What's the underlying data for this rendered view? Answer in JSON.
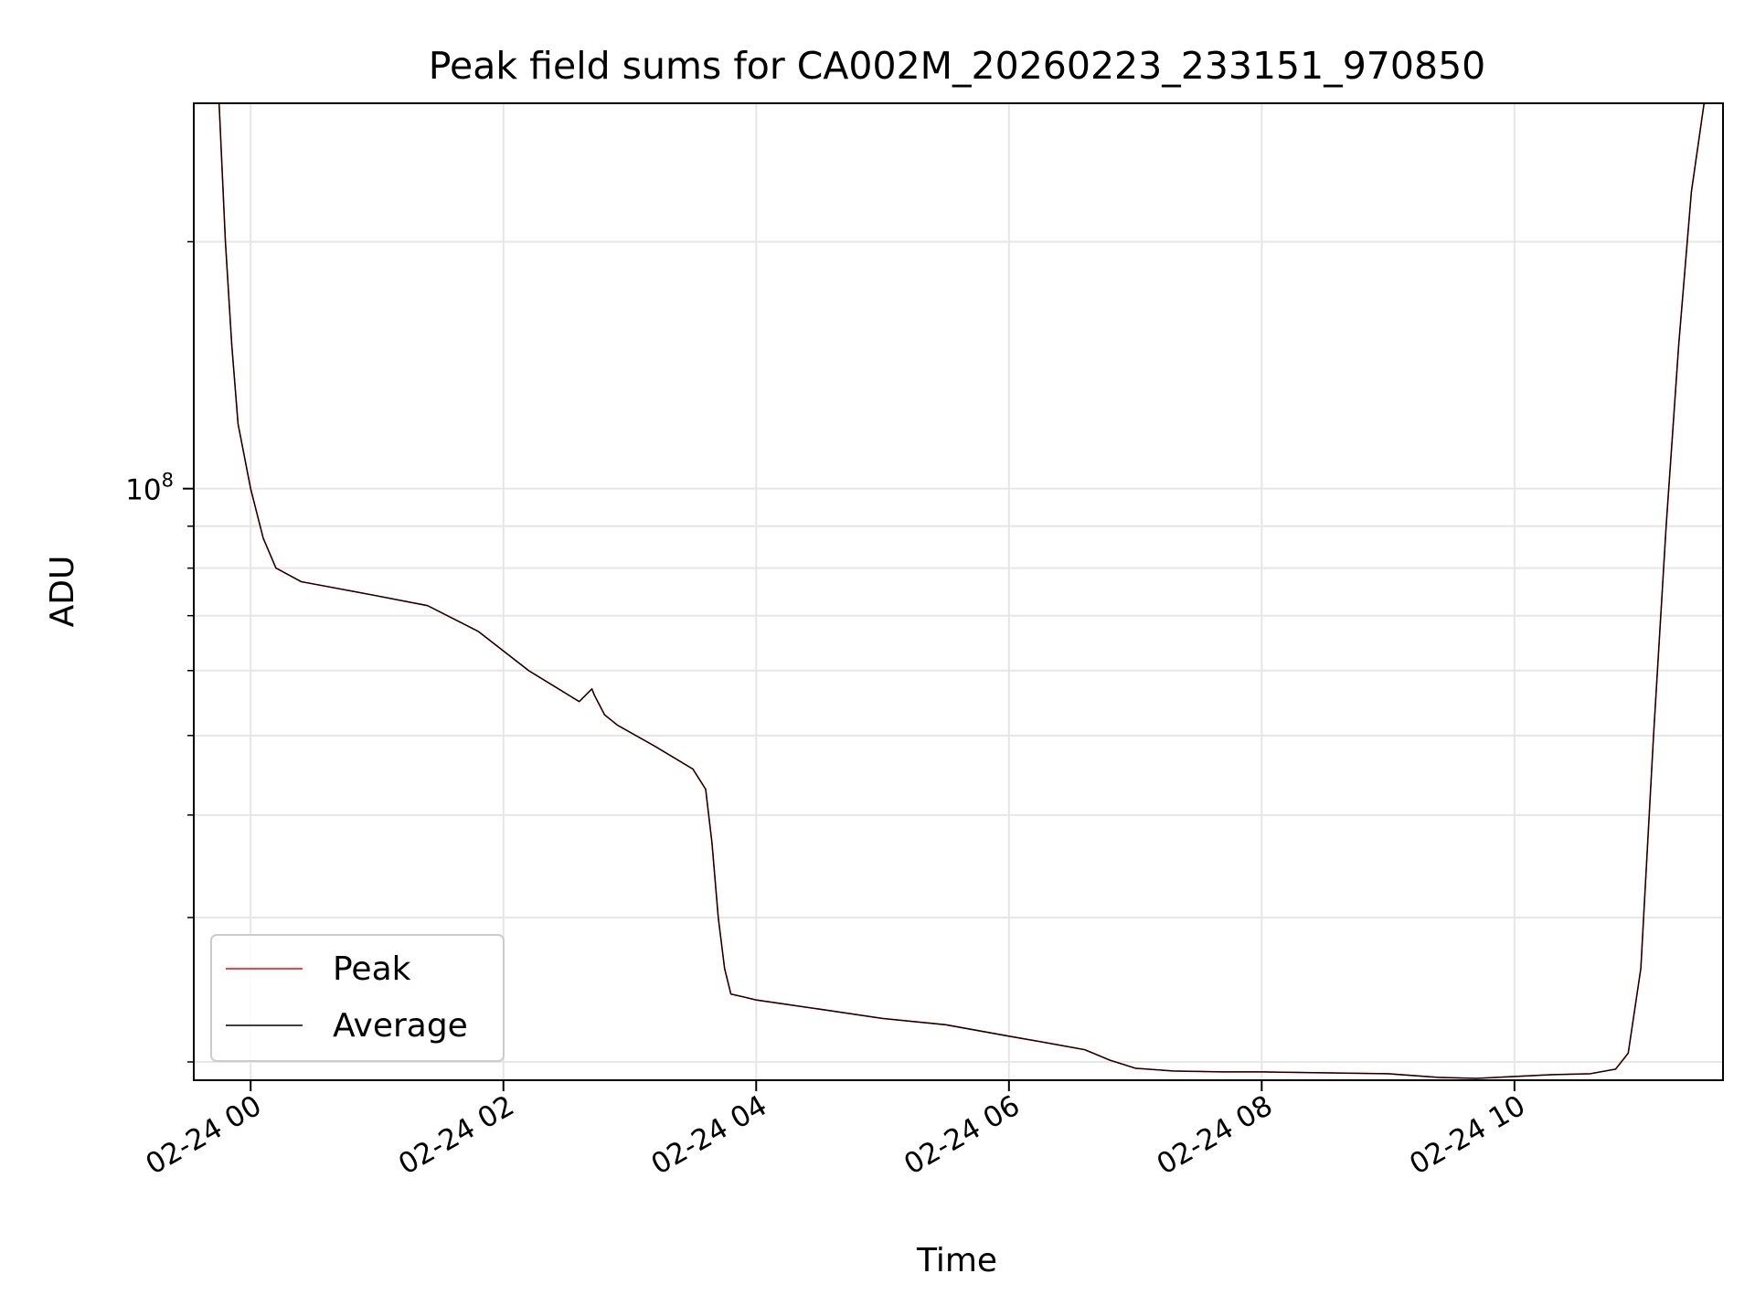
{
  "chart_data": {
    "type": "line",
    "title": "Peak field sums for CA002M_20260223_233151_970850",
    "xlabel": "Time",
    "ylabel": "ADU",
    "yscale": "log",
    "xlim": [
      -0.45,
      11.65
    ],
    "ylim": [
      19000000,
      295000000
    ],
    "grid": true,
    "legend": {
      "placement": "lower-left",
      "entries": [
        "Peak",
        "Average"
      ]
    },
    "x_ticks": [
      {
        "value": 0,
        "label": "02-24 00"
      },
      {
        "value": 2,
        "label": "02-24 02"
      },
      {
        "value": 4,
        "label": "02-24 04"
      },
      {
        "value": 6,
        "label": "02-24 06"
      },
      {
        "value": 8,
        "label": "02-24 08"
      },
      {
        "value": 10,
        "label": "02-24 10"
      }
    ],
    "y_major_ticks": [
      {
        "value": 100000000,
        "base": "10",
        "exp": "8"
      }
    ],
    "y_minor_ticks": [
      20000000,
      30000000,
      40000000,
      50000000,
      60000000,
      70000000,
      80000000,
      90000000,
      200000000
    ],
    "x_units": "hours since 02-24 00:00",
    "series": [
      {
        "name": "Peak",
        "color": "#ff0000",
        "x": [
          -0.3,
          -0.25,
          -0.2,
          -0.15,
          -0.1,
          0,
          0.1,
          0.2,
          0.4,
          0.6,
          1.0,
          1.4,
          1.8,
          2.2,
          2.6,
          2.7,
          2.72,
          2.8,
          2.9,
          3.2,
          3.5,
          3.6,
          3.65,
          3.7,
          3.75,
          3.8,
          3.9,
          4.0,
          4.5,
          5.0,
          5.5,
          6.0,
          6.3,
          6.6,
          6.8,
          7.0,
          7.3,
          7.7,
          8.0,
          8.5,
          9.0,
          9.4,
          9.7,
          10.0,
          10.3,
          10.6,
          10.8,
          10.9,
          11.0,
          11.1,
          11.2,
          11.3,
          11.4,
          11.5,
          11.65
        ],
        "values": [
          295000000,
          295000000,
          200000000,
          150000000,
          120000000,
          100000000,
          87000000,
          80000000,
          77000000,
          76000000,
          74000000,
          72000000,
          67000000,
          60000000,
          55000000,
          57000000,
          56000000,
          53000000,
          51500000,
          48500000,
          45500000,
          43000000,
          37000000,
          30000000,
          26000000,
          24200000,
          24000000,
          23800000,
          23200000,
          22600000,
          22200000,
          21500000,
          21100000,
          20700000,
          20100000,
          19650000,
          19500000,
          19450000,
          19450000,
          19400000,
          19350000,
          19150000,
          19100000,
          19200000,
          19300000,
          19350000,
          19600000,
          20500000,
          26000000,
          50000000,
          90000000,
          150000000,
          230000000,
          295000000,
          295000000
        ]
      },
      {
        "name": "Average",
        "color": "#000000",
        "x": [
          -0.3,
          -0.25,
          -0.2,
          -0.15,
          -0.1,
          0,
          0.1,
          0.2,
          0.4,
          0.6,
          1.0,
          1.4,
          1.8,
          2.2,
          2.6,
          2.7,
          2.72,
          2.8,
          2.9,
          3.2,
          3.5,
          3.6,
          3.65,
          3.7,
          3.75,
          3.8,
          3.9,
          4.0,
          4.5,
          5.0,
          5.5,
          6.0,
          6.3,
          6.6,
          6.8,
          7.0,
          7.3,
          7.7,
          8.0,
          8.5,
          9.0,
          9.4,
          9.7,
          10.0,
          10.3,
          10.6,
          10.8,
          10.9,
          11.0,
          11.1,
          11.2,
          11.3,
          11.4,
          11.5,
          11.65
        ],
        "values": [
          295000000,
          295000000,
          200000000,
          150000000,
          120000000,
          100000000,
          87000000,
          80000000,
          77000000,
          76000000,
          74000000,
          72000000,
          67000000,
          60000000,
          55000000,
          57000000,
          56000000,
          53000000,
          51500000,
          48500000,
          45500000,
          43000000,
          37000000,
          30000000,
          26000000,
          24200000,
          24000000,
          23800000,
          23200000,
          22600000,
          22200000,
          21500000,
          21100000,
          20700000,
          20100000,
          19650000,
          19500000,
          19450000,
          19450000,
          19400000,
          19350000,
          19150000,
          19100000,
          19200000,
          19300000,
          19350000,
          19600000,
          20500000,
          26000000,
          50000000,
          90000000,
          150000000,
          230000000,
          295000000,
          295000000
        ]
      }
    ]
  }
}
